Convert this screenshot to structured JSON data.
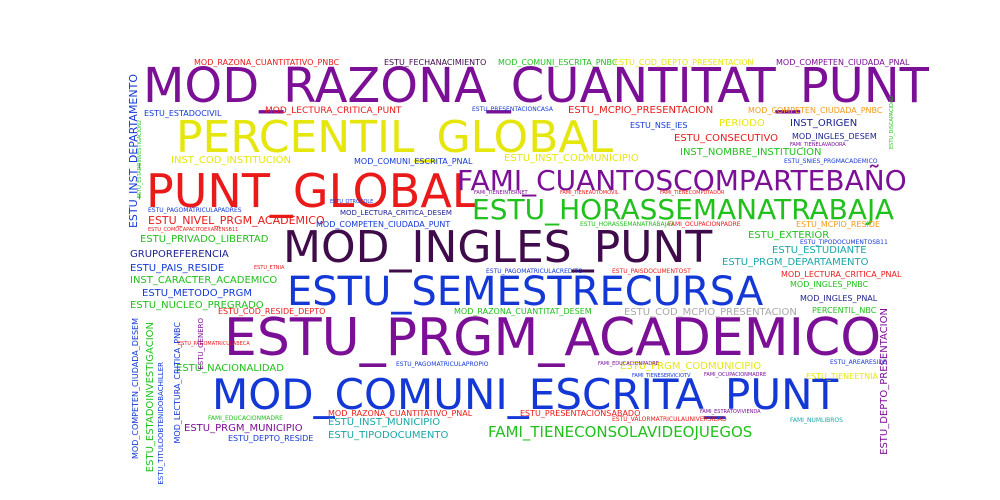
{
  "palette": {
    "purple": "#7b0f96",
    "blue": "#1338d6",
    "red": "#ea1a1a",
    "yellow": "#e6e60f",
    "green": "#21c01c",
    "darkpurple": "#3f0b4a",
    "navy": "#1a1f8f",
    "orange": "#f29a1a",
    "teal": "#19a7a7",
    "gray": "#a8a8a8"
  },
  "words": [
    {
      "text": "MOD_RAZONA_CUANTITAT_PUNT",
      "color": "#7b0f96"
    },
    {
      "text": "PERCENTIL_GLOBAL",
      "color": "#e6e60f"
    },
    {
      "text": "PUNT_GLOBAL",
      "color": "#ea1a1a"
    },
    {
      "text": "FAMI_CUANTOSCOMPARTEBAÑO",
      "color": "#7b0f96"
    },
    {
      "text": "ESTU_HORASSEMANATRABAJA",
      "color": "#21c01c"
    },
    {
      "text": "MOD_INGLES_PUNT",
      "color": "#3f0b4a"
    },
    {
      "text": "ESTU_SEMESTRECURSA",
      "color": "#1338d6"
    },
    {
      "text": "ESTU_PRGM_ACADEMICO",
      "color": "#7b0f96"
    },
    {
      "text": "MOD_COMUNI_ESCRITA_PUNT",
      "color": "#1338d6"
    },
    {
      "text": "FAMI_TIENECONSOLAVIDEOJUEGOS",
      "color": "#21c01c"
    },
    {
      "text": "MOD_RAZONA_CUANTITATIVO_PNBC",
      "color": "#ea1a1a"
    },
    {
      "text": "ESTU_FECHANACIMIENTO",
      "color": "#3f0b4a"
    },
    {
      "text": "MOD_COMUNI_ESCRITA_PNBC",
      "color": "#21c01c"
    },
    {
      "text": "ESTU_COD_DEPTO_PRESENTACION",
      "color": "#e6e60f"
    },
    {
      "text": "MOD_COMPETEN_CIUDADA_PNAL",
      "color": "#7b0f96"
    },
    {
      "text": "ESTU_ESTADOCIVIL",
      "color": "#1338d6"
    },
    {
      "text": "MOD_LECTURA_CRITICA_PUNT",
      "color": "#ea1a1a"
    },
    {
      "text": "ESTU_PRESENTACIONCASA",
      "color": "#1338d6"
    },
    {
      "text": "ESTU_MCPIO_PRESENTACION",
      "color": "#ea1a1a"
    },
    {
      "text": "MOD_COMPETEN_CIUDADA_PNBC",
      "color": "#f29a1a"
    },
    {
      "text": "ESTU_NSE_IES",
      "color": "#1338d6"
    },
    {
      "text": "PERIODO",
      "color": "#e6e60f"
    },
    {
      "text": "INST_ORIGEN",
      "color": "#1a1f8f"
    },
    {
      "text": "ESTU_CONSECUTIVO",
      "color": "#ea1a1a"
    },
    {
      "text": "MOD_INGLES_DESEM",
      "color": "#1a1f8f"
    },
    {
      "text": "INST_NOMBRE_INSTITUCION",
      "color": "#21c01c"
    },
    {
      "text": "INST_COD_INSTITUCION",
      "color": "#e6e60f"
    },
    {
      "text": "MOD_COMUNI_ESCRITA_PNAL",
      "color": "#1338d6"
    },
    {
      "text": "ESTU_INST_CODMUNICIPIO",
      "color": "#e6e60f"
    },
    {
      "text": "ESTU_PAGOMATRICULAPADRES",
      "color": "#1338d6"
    },
    {
      "text": "ESTU_NIVEL_PRGM_ACADEMICO",
      "color": "#ea1a1a"
    },
    {
      "text": "MOD_LECTURA_CRITICA_DESEM",
      "color": "#1a1f8f"
    },
    {
      "text": "MOD_COMPETEN_CIUDADA_PUNT",
      "color": "#1338d6"
    },
    {
      "text": "ESTU_MCPIO_RESIDE",
      "color": "#f29a1a"
    },
    {
      "text": "ESTU_PRIVADO_LIBERTAD",
      "color": "#21c01c"
    },
    {
      "text": "ESTU_EXTERIOR",
      "color": "#21c01c"
    },
    {
      "text": "GRUPOREFERENCIA",
      "color": "#1a1f8f"
    },
    {
      "text": "ESTU_ESTUDIANTE",
      "color": "#19a7a7"
    },
    {
      "text": "ESTU_PAIS_RESIDE",
      "color": "#1338d6"
    },
    {
      "text": "ESTU_PRGM_DEPARTAMENTO",
      "color": "#19a7a7"
    },
    {
      "text": "INST_CARACTER_ACADEMICO",
      "color": "#21c01c"
    },
    {
      "text": "MOD_LECTURA_CRITICA_PNAL",
      "color": "#ea1a1a"
    },
    {
      "text": "ESTU_METODO_PRGM",
      "color": "#1338d6"
    },
    {
      "text": "MOD_INGLES_PNBC",
      "color": "#21c01c"
    },
    {
      "text": "ESTU_NUCLEO_PREGRADO",
      "color": "#21c01c"
    },
    {
      "text": "MOD_INGLES_PNAL",
      "color": "#1a1f8f"
    },
    {
      "text": "ESTU_COD_RESIDE_DEPTO",
      "color": "#ea1a1a"
    },
    {
      "text": "MOD_RAZONA_CUANTITAT_DESEM",
      "color": "#21c01c"
    },
    {
      "text": "ESTU_COD_MCPIO_PRESENTACION",
      "color": "#a8a8a8"
    },
    {
      "text": "PERCENTIL_NBC",
      "color": "#21c01c"
    },
    {
      "text": "ESTU_NACIONALIDAD",
      "color": "#21c01c"
    },
    {
      "text": "ESTU_PRGM_CODMUNICIPIO",
      "color": "#e6e60f"
    },
    {
      "text": "MOD_RAZONA_CUANTITATIVO_PNAL",
      "color": "#ea1a1a"
    },
    {
      "text": "ESTU_PRESENTACIONSABADO",
      "color": "#ea1a1a"
    },
    {
      "text": "ESTU_TIENEETNIA",
      "color": "#e6e60f"
    },
    {
      "text": "ESTU_PRGM_MUNICIPIO",
      "color": "#7b0f96"
    },
    {
      "text": "ESTU_INST_MUNICIPIO",
      "color": "#19a7a7"
    },
    {
      "text": "ESTU_TIPODOCUMENTO",
      "color": "#19a7a7"
    },
    {
      "text": "ESTU_DEPTO_RESIDE",
      "color": "#1338d6"
    },
    {
      "text": "ESTU_INST_DEPARTAMENTO",
      "color": "#1338d6"
    },
    {
      "text": "MOD_LECTURA_CRITICA_PNBC",
      "color": "#1338d6"
    },
    {
      "text": "MOD_COMPETEN_CIUDADA_DESEM",
      "color": "#1338d6"
    },
    {
      "text": "ESTU_DEPTO_PRESENTACION",
      "color": "#7b0f96"
    },
    {
      "text": "ESTU_GENERO",
      "color": "#7b0f96"
    },
    {
      "text": "FAMI_EDUCACIONMADRE",
      "color": "#21c01c"
    },
    {
      "text": "ESTU_AREARESIDE",
      "color": "#1338d6"
    },
    {
      "text": "ESTU_VALORMATRICULAUNIVERSIDAD",
      "color": "#ea1a1a"
    },
    {
      "text": "ESTU_ESTADOINVESTIGACION",
      "color": "#21c01c"
    },
    {
      "text": "ESTU_PAGOMATRICULAPROPIO",
      "color": "#1338d6"
    },
    {
      "text": "ESTU_PAGOMATRICULACREDITO",
      "color": "#1338d6"
    },
    {
      "text": "ESTU_PAISDOCUMENTOST",
      "color": "#ea1a1a"
    },
    {
      "text": "FAMI_OCUPACIONPADRE",
      "color": "#ea1a1a"
    },
    {
      "text": "ESTU_TIPODOCUMENTOSB11",
      "color": "#1338d6"
    },
    {
      "text": "FAMI_TIENEINTERNET",
      "color": "#7b0f96"
    },
    {
      "text": "FAMI_TIENEAUTOMOVIL",
      "color": "#ea1a1a"
    },
    {
      "text": "FAMI_TIENECOMPUTADOR",
      "color": "#ea1a1a"
    },
    {
      "text": "ESTU_SNIES_PRGMACADEMICO",
      "color": "#1338d6"
    },
    {
      "text": "FAMI_TIENELAVADORA",
      "color": "#7b0f96"
    },
    {
      "text": "ESTU_COMOCAPACITOEXAMENSB11",
      "color": "#ea1a1a"
    },
    {
      "text": "FAMI_EDUCACIONPADRE",
      "color": "#7b0f96"
    },
    {
      "text": "ESTU_PAGOMATRICULABECA",
      "color": "#ea1a1a"
    },
    {
      "text": "FAMI_OCUPACIONMADRE",
      "color": "#7b0f96"
    },
    {
      "text": "ESTU_TITULOOBTENIDOBACHILLER",
      "color": "#1338d6"
    },
    {
      "text": "FAMI_ESTRATOVIVIENDA",
      "color": "#7b0f96"
    },
    {
      "text": "ESTU_ETNIA",
      "color": "#ea1a1a"
    },
    {
      "text": "FAMI_NUMLIBROS",
      "color": "#19a7a7"
    },
    {
      "text": "ESTU_ESTADOINVESTIGACION2",
      "color": "#21c01c"
    },
    {
      "text": "ESTU_DISCAPACIDAD",
      "color": "#21c01c"
    },
    {
      "text": "FAMI_TIENESERVICIOTV",
      "color": "#1338d6"
    },
    {
      "text": "ESTU_HORASSEMANATRABAJA2",
      "color": "#21c01c"
    },
    {
      "text": "ESTU_OTROCOLE",
      "color": "#1338d6"
    }
  ]
}
